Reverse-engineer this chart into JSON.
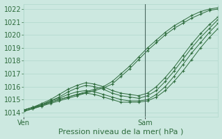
{
  "bg_color": "#cce8e0",
  "line_color": "#2d6b3c",
  "grid_color": "#b0d8cc",
  "xlabel": "Pression niveau de la mer( hPa )",
  "xlabel_fontsize": 8,
  "tick_label_color": "#2d6b3c",
  "tick_label_fontsize": 7,
  "ylim": [
    1013.7,
    1022.4
  ],
  "yticks": [
    1014,
    1015,
    1016,
    1017,
    1018,
    1019,
    1020,
    1021,
    1022
  ],
  "vline_x": 0.625,
  "xtick_labels": [
    "Ven",
    "Sam"
  ],
  "xtick_positions": [
    0.0,
    0.625
  ],
  "series": [
    [
      1014.2,
      1014.4,
      1014.6,
      1014.8,
      1015.0,
      1015.2,
      1015.4,
      1015.6,
      1015.8,
      1016.0,
      1016.4,
      1017.0,
      1017.6,
      1018.3,
      1019.0,
      1019.6,
      1020.2,
      1020.7,
      1021.1,
      1021.5,
      1021.8,
      1022.0,
      1022.1
    ],
    [
      1014.1,
      1014.3,
      1014.5,
      1014.7,
      1014.9,
      1015.1,
      1015.3,
      1015.5,
      1015.7,
      1015.9,
      1016.2,
      1016.8,
      1017.4,
      1018.1,
      1018.8,
      1019.4,
      1020.0,
      1020.5,
      1020.9,
      1021.3,
      1021.6,
      1021.9,
      1022.0
    ],
    [
      1014.2,
      1014.4,
      1014.7,
      1015.0,
      1015.4,
      1015.8,
      1016.1,
      1016.3,
      1016.2,
      1016.0,
      1015.7,
      1015.5,
      1015.4,
      1015.3,
      1015.5,
      1016.0,
      1016.7,
      1017.5,
      1018.4,
      1019.3,
      1020.1,
      1020.8,
      1021.4
    ],
    [
      1014.1,
      1014.3,
      1014.6,
      1014.9,
      1015.2,
      1015.6,
      1015.9,
      1016.1,
      1016.0,
      1015.8,
      1015.5,
      1015.3,
      1015.2,
      1015.1,
      1015.3,
      1015.7,
      1016.4,
      1017.2,
      1018.1,
      1019.0,
      1019.8,
      1020.5,
      1021.2
    ],
    [
      1014.2,
      1014.4,
      1014.6,
      1014.9,
      1015.1,
      1015.4,
      1015.6,
      1015.7,
      1015.6,
      1015.4,
      1015.2,
      1015.0,
      1014.9,
      1014.9,
      1015.0,
      1015.4,
      1016.0,
      1016.8,
      1017.7,
      1018.6,
      1019.4,
      1020.2,
      1020.9
    ],
    [
      1014.1,
      1014.3,
      1014.5,
      1014.8,
      1015.0,
      1015.2,
      1015.4,
      1015.5,
      1015.4,
      1015.2,
      1015.0,
      1014.8,
      1014.8,
      1014.8,
      1014.9,
      1015.2,
      1015.7,
      1016.4,
      1017.2,
      1018.1,
      1019.0,
      1019.8,
      1020.5
    ]
  ]
}
